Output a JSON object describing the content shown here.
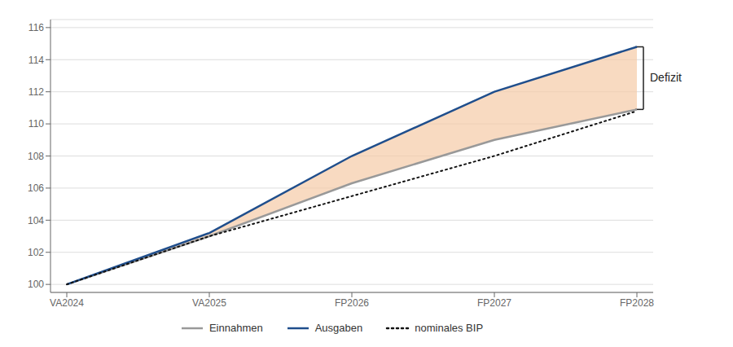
{
  "chart_data": {
    "type": "line",
    "categories": [
      "VA2024",
      "VA2025",
      "FP2026",
      "FP2027",
      "FP2028"
    ],
    "series": [
      {
        "name": "Einnahmen",
        "color": "#999999",
        "line_style": "solid",
        "values": [
          100.0,
          103.0,
          106.3,
          109.0,
          110.9
        ]
      },
      {
        "name": "Ausgaben",
        "color": "#1f4e8c",
        "line_style": "solid",
        "values": [
          100.0,
          103.2,
          108.0,
          112.0,
          114.8
        ]
      },
      {
        "name": "nominales BIP",
        "color": "#111111",
        "line_style": "dotted",
        "values": [
          100.0,
          103.0,
          105.5,
          108.0,
          110.8
        ]
      }
    ],
    "ylim": [
      99.5,
      116.5
    ],
    "yticks": [
      100,
      102,
      104,
      106,
      108,
      110,
      112,
      114,
      116
    ],
    "grid": true,
    "legend": "bottom",
    "annotations": [
      {
        "text": "Defizit",
        "between": [
          "Einnahmen",
          "Ausgaben"
        ],
        "color": "#f5cba7"
      }
    ]
  }
}
